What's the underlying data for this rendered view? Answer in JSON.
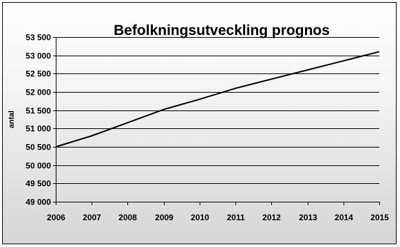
{
  "chart_data": {
    "type": "line",
    "title": "Befolkningsutveckling prognos",
    "xlabel": "",
    "ylabel": "antal",
    "x": [
      "2006",
      "2007",
      "2008",
      "2009",
      "2010",
      "2011",
      "2012",
      "2013",
      "2014",
      "2015"
    ],
    "series": [
      {
        "values": [
          50500,
          50800,
          51160,
          51520,
          51800,
          52100,
          52350,
          52600,
          52850,
          53100
        ]
      }
    ],
    "ylim": [
      49000,
      53500
    ],
    "yticks": [
      49000,
      49500,
      50000,
      50500,
      51000,
      51500,
      52000,
      52500,
      53000,
      53500
    ],
    "ytick_labels": [
      "49 000",
      "49 500",
      "50 000",
      "50 500",
      "51 000",
      "51 500",
      "52 000",
      "52 500",
      "53 000",
      "53 500"
    ],
    "grid": true,
    "legend": "none",
    "colors": {
      "line": "#000000",
      "grid": "#000000"
    }
  }
}
